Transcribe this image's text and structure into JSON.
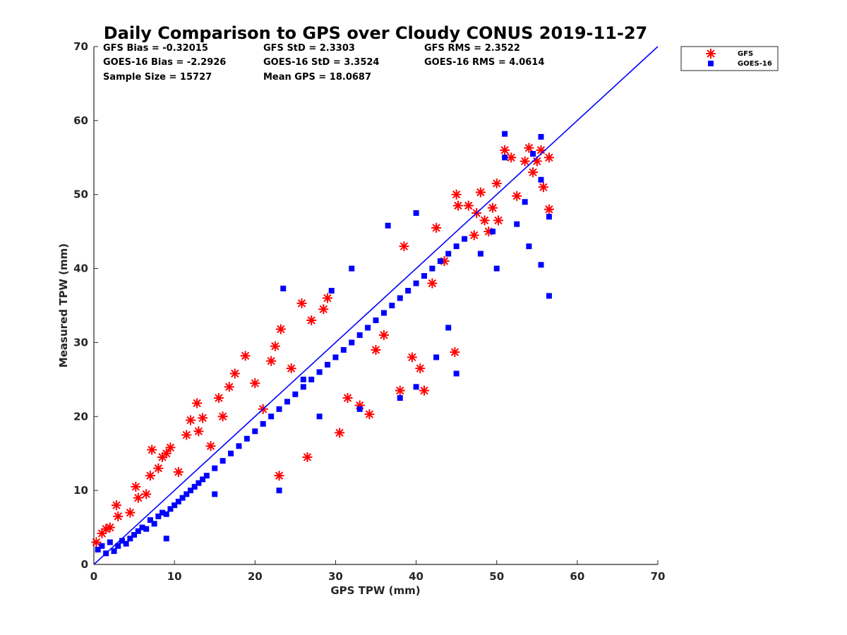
{
  "chart_data": {
    "type": "scatter",
    "title": "Daily Comparison to GPS over Cloudy CONUS 2019-11-27",
    "xlabel": "GPS TPW (mm)",
    "ylabel": "Measured TPW (mm)",
    "xlim": [
      0,
      70
    ],
    "ylim": [
      0,
      70
    ],
    "xticks": [
      "0",
      "10",
      "20",
      "30",
      "40",
      "50",
      "60",
      "70"
    ],
    "yticks": [
      "0",
      "10",
      "20",
      "30",
      "40",
      "50",
      "60",
      "70"
    ],
    "grid": false,
    "legend_position": "outside-top-right",
    "reference_line": {
      "name": "1:1 line",
      "x": [
        0,
        70
      ],
      "y": [
        0,
        70
      ],
      "color": "#0000ff"
    },
    "stats": {
      "gfs_bias": "GFS Bias = -0.32015",
      "goes_bias": "GOES-16 Bias = -2.2926",
      "sample_size": "Sample Size = 15727",
      "gfs_std": "GFS StD = 2.3303",
      "goes_std": "GOES-16 StD = 3.3524",
      "mean_gps": "Mean GPS = 18.0687",
      "gfs_rms": "GFS RMS = 2.3522",
      "goes_rms": "GOES-16 RMS = 4.0614"
    },
    "series": [
      {
        "name": "GFS",
        "marker": "asterisk",
        "color": "#ff0000",
        "points": [
          [
            0.3,
            3.0
          ],
          [
            1.0,
            4.2
          ],
          [
            1.5,
            4.8
          ],
          [
            2.0,
            5.0
          ],
          [
            2.8,
            8.0
          ],
          [
            3.0,
            6.5
          ],
          [
            4.5,
            7.0
          ],
          [
            5.2,
            10.5
          ],
          [
            5.5,
            9.0
          ],
          [
            6.5,
            9.5
          ],
          [
            7.0,
            12.0
          ],
          [
            7.2,
            15.5
          ],
          [
            8.0,
            13.0
          ],
          [
            8.5,
            14.5
          ],
          [
            9.0,
            15.0
          ],
          [
            9.5,
            15.8
          ],
          [
            10.5,
            12.5
          ],
          [
            11.5,
            17.5
          ],
          [
            12.0,
            19.5
          ],
          [
            12.8,
            21.8
          ],
          [
            13.0,
            18.0
          ],
          [
            13.5,
            19.8
          ],
          [
            14.5,
            16.0
          ],
          [
            15.5,
            22.5
          ],
          [
            16.0,
            20.0
          ],
          [
            16.8,
            24.0
          ],
          [
            17.5,
            25.8
          ],
          [
            18.8,
            28.2
          ],
          [
            20.0,
            24.5
          ],
          [
            21.0,
            21.0
          ],
          [
            22.0,
            27.5
          ],
          [
            22.5,
            29.5
          ],
          [
            23.0,
            12.0
          ],
          [
            23.2,
            31.8
          ],
          [
            24.5,
            26.5
          ],
          [
            25.8,
            35.3
          ],
          [
            26.5,
            14.5
          ],
          [
            27.0,
            33.0
          ],
          [
            28.5,
            34.5
          ],
          [
            29.0,
            36.0
          ],
          [
            30.5,
            17.8
          ],
          [
            31.5,
            22.5
          ],
          [
            33.0,
            21.5
          ],
          [
            34.2,
            20.3
          ],
          [
            35.0,
            29.0
          ],
          [
            36.0,
            31.0
          ],
          [
            38.0,
            23.5
          ],
          [
            38.5,
            43.0
          ],
          [
            39.5,
            28.0
          ],
          [
            40.5,
            26.5
          ],
          [
            41.0,
            23.5
          ],
          [
            42.0,
            38.0
          ],
          [
            42.5,
            45.5
          ],
          [
            43.5,
            41.0
          ],
          [
            44.8,
            28.7
          ],
          [
            45.0,
            50.0
          ],
          [
            45.2,
            48.5
          ],
          [
            46.5,
            48.5
          ],
          [
            47.2,
            44.5
          ],
          [
            47.5,
            47.5
          ],
          [
            48.0,
            50.3
          ],
          [
            48.5,
            46.5
          ],
          [
            49.0,
            45.0
          ],
          [
            49.5,
            48.2
          ],
          [
            50.0,
            51.5
          ],
          [
            50.2,
            46.5
          ],
          [
            51.0,
            56.0
          ],
          [
            51.8,
            55.0
          ],
          [
            52.5,
            49.8
          ],
          [
            53.5,
            54.5
          ],
          [
            54.0,
            56.3
          ],
          [
            54.5,
            53.0
          ],
          [
            55.0,
            54.5
          ],
          [
            55.5,
            56.0
          ],
          [
            55.8,
            51.0
          ],
          [
            56.5,
            55.0
          ],
          [
            56.5,
            48.0
          ]
        ]
      },
      {
        "name": "GOES-16",
        "marker": "square",
        "color": "#0000ff",
        "points": [
          [
            0.5,
            2.0
          ],
          [
            1.0,
            2.5
          ],
          [
            1.5,
            1.5
          ],
          [
            2.0,
            3.0
          ],
          [
            2.5,
            1.8
          ],
          [
            3.0,
            2.5
          ],
          [
            3.5,
            3.2
          ],
          [
            4.0,
            2.8
          ],
          [
            4.5,
            3.5
          ],
          [
            5.0,
            4.0
          ],
          [
            5.5,
            4.5
          ],
          [
            6.0,
            5.0
          ],
          [
            6.5,
            4.8
          ],
          [
            7.0,
            6.0
          ],
          [
            7.5,
            5.5
          ],
          [
            8.0,
            6.5
          ],
          [
            8.5,
            7.0
          ],
          [
            9.0,
            6.8
          ],
          [
            9.5,
            7.5
          ],
          [
            10.0,
            8.0
          ],
          [
            10.5,
            8.5
          ],
          [
            11.0,
            9.0
          ],
          [
            11.5,
            9.5
          ],
          [
            12.0,
            10.0
          ],
          [
            12.5,
            10.5
          ],
          [
            13.0,
            11.0
          ],
          [
            13.5,
            11.5
          ],
          [
            14.0,
            12.0
          ],
          [
            15.0,
            13.0
          ],
          [
            16.0,
            14.0
          ],
          [
            17.0,
            15.0
          ],
          [
            18.0,
            16.0
          ],
          [
            19.0,
            17.0
          ],
          [
            20.0,
            18.0
          ],
          [
            21.0,
            19.0
          ],
          [
            22.0,
            20.0
          ],
          [
            23.0,
            21.0
          ],
          [
            24.0,
            22.0
          ],
          [
            25.0,
            23.0
          ],
          [
            26.0,
            24.0
          ],
          [
            27.0,
            25.0
          ],
          [
            28.0,
            26.0
          ],
          [
            29.0,
            27.0
          ],
          [
            30.0,
            28.0
          ],
          [
            31.0,
            29.0
          ],
          [
            32.0,
            30.0
          ],
          [
            33.0,
            31.0
          ],
          [
            34.0,
            32.0
          ],
          [
            35.0,
            33.0
          ],
          [
            36.0,
            34.0
          ],
          [
            37.0,
            35.0
          ],
          [
            38.0,
            36.0
          ],
          [
            39.0,
            37.0
          ],
          [
            40.0,
            38.0
          ],
          [
            41.0,
            39.0
          ],
          [
            42.0,
            40.0
          ],
          [
            43.0,
            41.0
          ],
          [
            44.0,
            42.0
          ],
          [
            45.0,
            43.0
          ],
          [
            46.0,
            44.0
          ],
          [
            23.5,
            37.3
          ],
          [
            26.0,
            25.0
          ],
          [
            29.5,
            37.0
          ],
          [
            32.0,
            40.0
          ],
          [
            36.5,
            45.8
          ],
          [
            40.0,
            47.5
          ],
          [
            44.0,
            32.0
          ],
          [
            45.0,
            25.8
          ],
          [
            48.0,
            42.0
          ],
          [
            49.5,
            45.0
          ],
          [
            50.0,
            40.0
          ],
          [
            51.0,
            58.2
          ],
          [
            51.0,
            55.0
          ],
          [
            52.5,
            46.0
          ],
          [
            53.5,
            49.0
          ],
          [
            54.0,
            43.0
          ],
          [
            54.5,
            55.5
          ],
          [
            55.5,
            57.8
          ],
          [
            55.5,
            52.0
          ],
          [
            55.5,
            40.5
          ],
          [
            56.5,
            47.0
          ],
          [
            56.5,
            36.3
          ],
          [
            9.0,
            3.5
          ],
          [
            15.0,
            9.5
          ],
          [
            23.0,
            10.0
          ],
          [
            28.0,
            20.0
          ],
          [
            33.0,
            21.0
          ],
          [
            38.0,
            22.5
          ],
          [
            40.0,
            24.0
          ],
          [
            42.5,
            28.0
          ]
        ]
      }
    ]
  }
}
